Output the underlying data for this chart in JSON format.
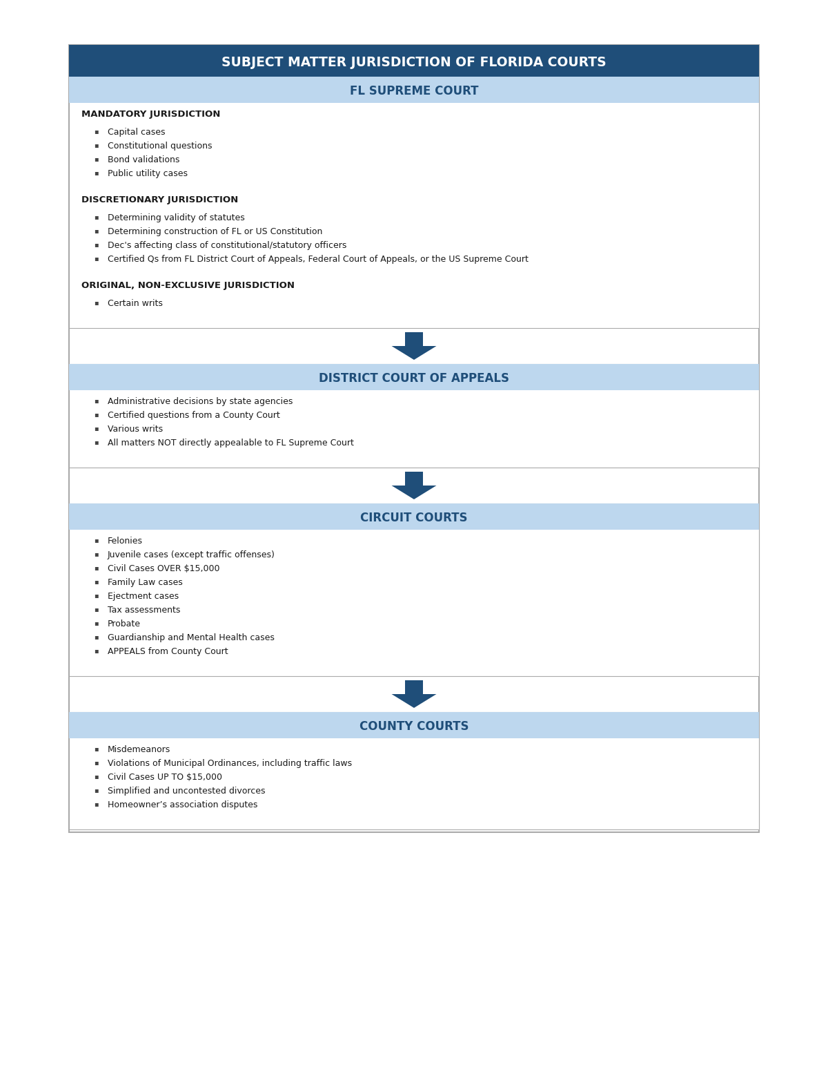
{
  "title": "SUBJECT MATTER JURISDICTION OF FLORIDA COURTS",
  "title_bg": "#1f4e79",
  "title_color": "#ffffff",
  "section_header_bg": "#bdd7ee",
  "section_header_color": "#1f4e79",
  "content_bg": "#ffffff",
  "outer_border_color": "#aaaaaa",
  "arrow_color": "#1f4e79",
  "fig_width": 12.0,
  "fig_height": 15.58,
  "dpi": 100,
  "sections": [
    {
      "header": "FL SUPREME COURT",
      "subsections": [
        {
          "subtitle": "MANDATORY JURISDICTION",
          "items": [
            "Capital cases",
            "Constitutional questions",
            "Bond validations",
            "Public utility cases"
          ]
        },
        {
          "subtitle": "DISCRETIONARY JURISDICTION",
          "items": [
            "Determining validity of statutes",
            "Determining construction of FL or US Constitution",
            "Dec's affecting class of constitutional/statutory officers",
            "Certified Qs from FL District Court of Appeals, Federal Court of Appeals, or the US Supreme Court"
          ]
        },
        {
          "subtitle": "ORIGINAL, NON-EXCLUSIVE JURISDICTION",
          "items": [
            "Certain writs"
          ]
        }
      ]
    },
    {
      "header": "DISTRICT COURT OF APPEALS",
      "subsections": [
        {
          "subtitle": null,
          "items": [
            "Administrative decisions by state agencies",
            "Certified questions from a County Court",
            "Various writs",
            "All matters NOT directly appealable to FL Supreme Court"
          ]
        }
      ]
    },
    {
      "header": "CIRCUIT COURTS",
      "subsections": [
        {
          "subtitle": null,
          "items": [
            "Felonies",
            "Juvenile cases (except traffic offenses)",
            "Civil Cases OVER $15,000",
            "Family Law cases",
            "Ejectment cases",
            "Tax assessments",
            "Probate",
            "Guardianship and Mental Health cases",
            "APPEALS from County Court"
          ]
        }
      ]
    },
    {
      "header": "COUNTY COURTS",
      "subsections": [
        {
          "subtitle": null,
          "items": [
            "Misdemeanors",
            "Violations of Municipal Ordinances, including traffic laws",
            "Civil Cases UP TO $15,000",
            "Simplified and uncontested divorces",
            "Homeowner’s association disputes"
          ]
        }
      ]
    }
  ]
}
